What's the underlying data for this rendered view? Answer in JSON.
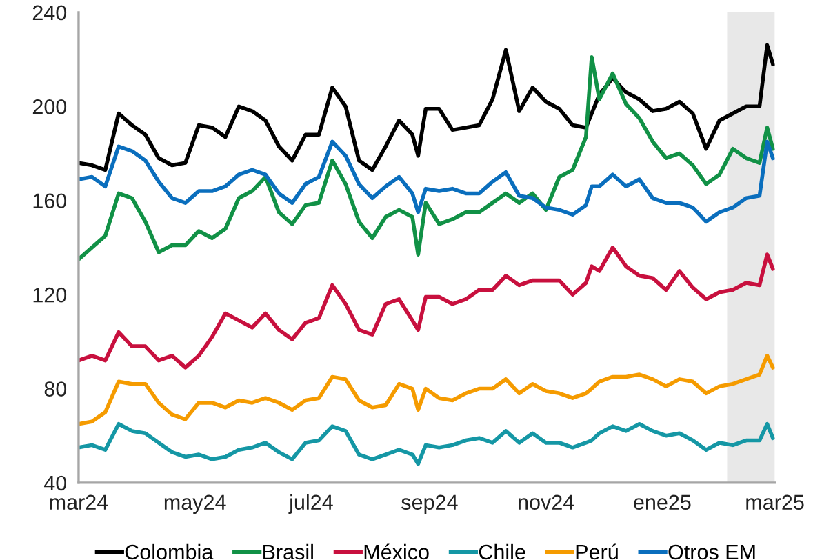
{
  "chart_data": {
    "type": "line",
    "x": [
      "2024-03-01",
      "2024-03-08",
      "2024-03-15",
      "2024-03-22",
      "2024-03-29",
      "2024-04-05",
      "2024-04-12",
      "2024-04-19",
      "2024-04-26",
      "2024-05-03",
      "2024-05-10",
      "2024-05-17",
      "2024-05-24",
      "2024-05-31",
      "2024-06-07",
      "2024-06-14",
      "2024-06-21",
      "2024-06-28",
      "2024-07-05",
      "2024-07-12",
      "2024-07-19",
      "2024-07-26",
      "2024-08-02",
      "2024-08-09",
      "2024-08-16",
      "2024-08-23",
      "2024-08-26",
      "2024-08-30",
      "2024-09-06",
      "2024-09-13",
      "2024-09-20",
      "2024-09-27",
      "2024-10-04",
      "2024-10-11",
      "2024-10-18",
      "2024-10-25",
      "2024-11-01",
      "2024-11-08",
      "2024-11-15",
      "2024-11-22",
      "2024-11-25",
      "2024-11-29",
      "2024-12-06",
      "2024-12-13",
      "2024-12-20",
      "2024-12-27",
      "2025-01-03",
      "2025-01-10",
      "2025-01-17",
      "2025-01-24",
      "2025-01-31",
      "2025-02-07",
      "2025-02-14",
      "2025-02-21",
      "2025-02-25",
      "2025-02-28"
    ],
    "series": [
      {
        "name": "Colombia",
        "color": "#000000",
        "values": [
          176,
          175,
          173,
          197,
          192,
          188,
          178,
          175,
          176,
          192,
          191,
          187,
          200,
          198,
          194,
          183,
          177,
          188,
          188,
          208,
          200,
          177,
          173,
          183,
          194,
          188,
          179,
          199,
          199,
          190,
          191,
          192,
          203,
          224,
          198,
          208,
          202,
          199,
          192,
          191,
          197,
          205,
          212,
          206,
          203,
          198,
          199,
          202,
          197,
          182,
          194,
          197,
          200,
          200,
          226,
          218
        ]
      },
      {
        "name": "Brasil",
        "color": "#119146",
        "values": [
          135,
          140,
          145,
          163,
          161,
          151,
          138,
          141,
          141,
          147,
          144,
          148,
          161,
          164,
          170,
          155,
          150,
          158,
          159,
          177,
          167,
          151,
          144,
          153,
          156,
          153,
          137,
          159,
          150,
          152,
          155,
          155,
          159,
          163,
          159,
          163,
          156,
          170,
          173,
          187,
          221,
          203,
          214,
          201,
          195,
          185,
          178,
          180,
          175,
          167,
          171,
          182,
          178,
          176,
          191,
          182
        ]
      },
      {
        "name": "México",
        "color": "#c8103e",
        "values": [
          92,
          94,
          92,
          104,
          98,
          98,
          92,
          94,
          89,
          94,
          102,
          112,
          109,
          106,
          112,
          105,
          101,
          108,
          110,
          124,
          116,
          105,
          103,
          116,
          118,
          109,
          105,
          119,
          119,
          116,
          118,
          122,
          122,
          128,
          124,
          126,
          126,
          126,
          120,
          125,
          132,
          130,
          140,
          132,
          128,
          127,
          122,
          130,
          123,
          118,
          121,
          122,
          125,
          124,
          137,
          131
        ]
      },
      {
        "name": "Chile",
        "color": "#1597a5",
        "values": [
          55,
          56,
          54,
          65,
          62,
          61,
          57,
          53,
          51,
          52,
          50,
          51,
          54,
          55,
          57,
          53,
          50,
          57,
          58,
          64,
          62,
          52,
          50,
          52,
          54,
          52,
          48,
          56,
          55,
          56,
          58,
          59,
          57,
          62,
          57,
          61,
          57,
          57,
          55,
          57,
          58,
          61,
          64,
          62,
          65,
          62,
          60,
          61,
          58,
          54,
          57,
          56,
          58,
          58,
          65,
          59
        ]
      },
      {
        "name": "Perú",
        "color": "#f59b00",
        "values": [
          65,
          66,
          70,
          83,
          82,
          82,
          74,
          69,
          67,
          74,
          74,
          72,
          75,
          74,
          76,
          74,
          71,
          75,
          76,
          85,
          84,
          75,
          72,
          73,
          82,
          80,
          71,
          80,
          76,
          75,
          78,
          80,
          80,
          84,
          78,
          82,
          79,
          78,
          76,
          78,
          80,
          83,
          85,
          85,
          86,
          84,
          81,
          84,
          83,
          78,
          81,
          82,
          84,
          86,
          94,
          89
        ]
      },
      {
        "name": "Otros EM",
        "color": "#0a6ebd",
        "values": [
          169,
          170,
          166,
          183,
          181,
          177,
          168,
          161,
          159,
          164,
          164,
          166,
          171,
          173,
          171,
          163,
          159,
          167,
          170,
          185,
          179,
          167,
          161,
          166,
          170,
          163,
          155,
          165,
          164,
          165,
          163,
          163,
          168,
          172,
          162,
          161,
          157,
          156,
          154,
          158,
          166,
          166,
          171,
          166,
          169,
          161,
          159,
          159,
          157,
          151,
          155,
          157,
          161,
          162,
          185,
          178
        ]
      }
    ],
    "xlim": [
      "2024-03-01",
      "2025-03-01"
    ],
    "xticks": [
      {
        "value": "2024-03-01",
        "label": "mar24"
      },
      {
        "value": "2024-05-01",
        "label": "may24"
      },
      {
        "value": "2024-07-01",
        "label": "jul24"
      },
      {
        "value": "2024-09-01",
        "label": "sep24"
      },
      {
        "value": "2024-11-01",
        "label": "nov24"
      },
      {
        "value": "2025-01-01",
        "label": "ene25"
      },
      {
        "value": "2025-03-01",
        "label": "mar25"
      }
    ],
    "ylim": [
      40,
      240
    ],
    "yticks": [
      40,
      80,
      120,
      160,
      200,
      240
    ],
    "bands": [
      {
        "axis": "x",
        "from": "2025-02-04",
        "to": "2025-03-01",
        "color": "#e8e8e8"
      }
    ],
    "legend": "bottom",
    "grid": false,
    "marker": "none",
    "line_style": "solid"
  }
}
